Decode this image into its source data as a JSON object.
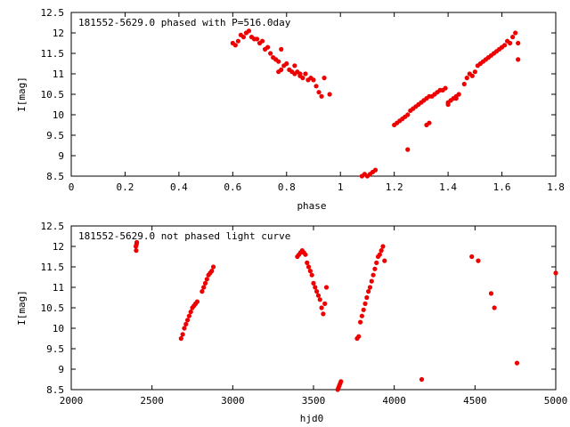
{
  "chart_data": [
    {
      "type": "scatter",
      "title": "181552-5629.0 phased with P=516.0day",
      "xlabel": "phase",
      "ylabel": "I[mag]",
      "xlim": [
        0,
        1.8
      ],
      "ylim": [
        12.5,
        8.5
      ],
      "y_inverted": true,
      "xticks": [
        "0",
        "0.2",
        "0.4",
        "0.6",
        "0.8",
        "1",
        "1.2",
        "1.4",
        "1.6",
        "1.8"
      ],
      "yticks": [
        "8.5",
        "9",
        "9.5",
        "10",
        "10.5",
        "11",
        "11.5",
        "12",
        "12.5"
      ],
      "marker": "filled-dot",
      "color": "#ee0000",
      "series": [
        {
          "x": [
            0.6,
            0.61,
            0.62,
            0.63,
            0.64,
            0.65,
            0.66,
            0.67,
            0.68,
            0.69,
            0.7,
            0.71,
            0.72,
            0.73,
            0.74,
            0.75,
            0.76,
            0.77,
            0.78,
            0.79,
            0.8,
            0.81,
            0.82,
            0.83,
            0.84,
            0.85,
            0.86,
            0.87,
            0.88,
            0.89,
            0.9,
            0.91,
            0.92,
            0.93,
            0.94,
            0.96,
            0.77,
            0.78,
            0.83,
            0.85,
            1.08,
            1.09,
            1.1,
            1.11,
            1.12,
            1.13,
            1.25,
            1.2,
            1.21,
            1.22,
            1.23,
            1.24,
            1.25,
            1.26,
            1.27,
            1.28,
            1.29,
            1.3,
            1.31,
            1.32,
            1.33,
            1.34,
            1.35,
            1.36,
            1.37,
            1.38,
            1.39,
            1.4,
            1.41,
            1.42,
            1.43,
            1.44,
            1.46,
            1.47,
            1.48,
            1.49,
            1.5,
            1.51,
            1.52,
            1.53,
            1.54,
            1.55,
            1.56,
            1.57,
            1.58,
            1.59,
            1.6,
            1.61,
            1.62,
            1.63,
            1.64,
            1.65,
            1.66,
            1.66,
            1.32,
            1.33,
            1.4,
            1.43
          ],
          "y": [
            11.75,
            11.7,
            11.8,
            11.95,
            11.9,
            12.0,
            12.05,
            11.9,
            11.85,
            11.85,
            11.75,
            11.8,
            11.6,
            11.65,
            11.5,
            11.4,
            11.35,
            11.3,
            11.1,
            11.2,
            11.25,
            11.1,
            11.05,
            11.0,
            11.05,
            10.95,
            10.9,
            11.0,
            10.85,
            10.9,
            10.85,
            10.7,
            10.55,
            10.45,
            10.9,
            10.5,
            11.05,
            11.6,
            11.2,
            11.0,
            8.5,
            8.55,
            8.5,
            8.55,
            8.6,
            8.65,
            9.15,
            9.75,
            9.8,
            9.85,
            9.9,
            9.95,
            10.0,
            10.1,
            10.15,
            10.2,
            10.25,
            10.3,
            10.35,
            10.4,
            10.45,
            10.45,
            10.5,
            10.55,
            10.6,
            10.6,
            10.65,
            10.3,
            10.35,
            10.4,
            10.45,
            10.5,
            10.75,
            10.9,
            11.0,
            10.95,
            11.05,
            11.2,
            11.25,
            11.3,
            11.35,
            11.4,
            11.45,
            11.5,
            11.55,
            11.6,
            11.65,
            11.7,
            11.8,
            11.75,
            11.9,
            12.0,
            11.75,
            11.35,
            9.75,
            9.8,
            10.25,
            10.4
          ]
        }
      ]
    },
    {
      "type": "scatter",
      "title": "181552-5629.0 not phased light curve",
      "xlabel": "hjd0",
      "ylabel": "I[mag]",
      "xlim": [
        2000,
        5000
      ],
      "ylim": [
        12.5,
        8.5
      ],
      "y_inverted": true,
      "xticks": [
        "2000",
        "2500",
        "3000",
        "3500",
        "4000",
        "4500",
        "5000"
      ],
      "yticks": [
        "8.5",
        "9",
        "9.5",
        "10",
        "10.5",
        "11",
        "11.5",
        "12",
        "12.5"
      ],
      "marker": "filled-dot",
      "color": "#ee0000",
      "series": [
        {
          "x": [
            2400,
            2402,
            2404,
            2406,
            2680,
            2690,
            2700,
            2710,
            2720,
            2730,
            2740,
            2750,
            2760,
            2770,
            2780,
            2810,
            2820,
            2830,
            2840,
            2850,
            2860,
            2870,
            2880,
            3400,
            3410,
            3420,
            3430,
            3440,
            3450,
            3460,
            3470,
            3480,
            3490,
            3500,
            3510,
            3520,
            3530,
            3540,
            3550,
            3560,
            3570,
            3580,
            3650,
            3655,
            3660,
            3665,
            3670,
            3770,
            3780,
            3790,
            3800,
            3810,
            3820,
            3830,
            3840,
            3850,
            3860,
            3870,
            3880,
            3890,
            3900,
            3910,
            3920,
            3930,
            3940,
            4170,
            4480,
            4520,
            4600,
            4620,
            4760,
            5000
          ],
          "y": [
            12.0,
            11.9,
            12.05,
            12.1,
            9.75,
            9.85,
            10.0,
            10.1,
            10.2,
            10.3,
            10.4,
            10.5,
            10.55,
            10.6,
            10.65,
            10.9,
            11.0,
            11.1,
            11.2,
            11.3,
            11.35,
            11.4,
            11.5,
            11.75,
            11.8,
            11.85,
            11.9,
            11.85,
            11.8,
            11.6,
            11.5,
            11.4,
            11.3,
            11.1,
            11.0,
            10.9,
            10.8,
            10.7,
            10.5,
            10.35,
            10.6,
            11.0,
            8.5,
            8.55,
            8.6,
            8.65,
            8.7,
            9.75,
            9.8,
            10.15,
            10.3,
            10.45,
            10.6,
            10.75,
            10.9,
            11.0,
            11.15,
            11.3,
            11.45,
            11.6,
            11.75,
            11.8,
            11.9,
            12.0,
            11.65,
            8.75,
            11.75,
            11.65,
            10.85,
            10.5,
            9.15,
            11.35
          ]
        }
      ]
    }
  ]
}
